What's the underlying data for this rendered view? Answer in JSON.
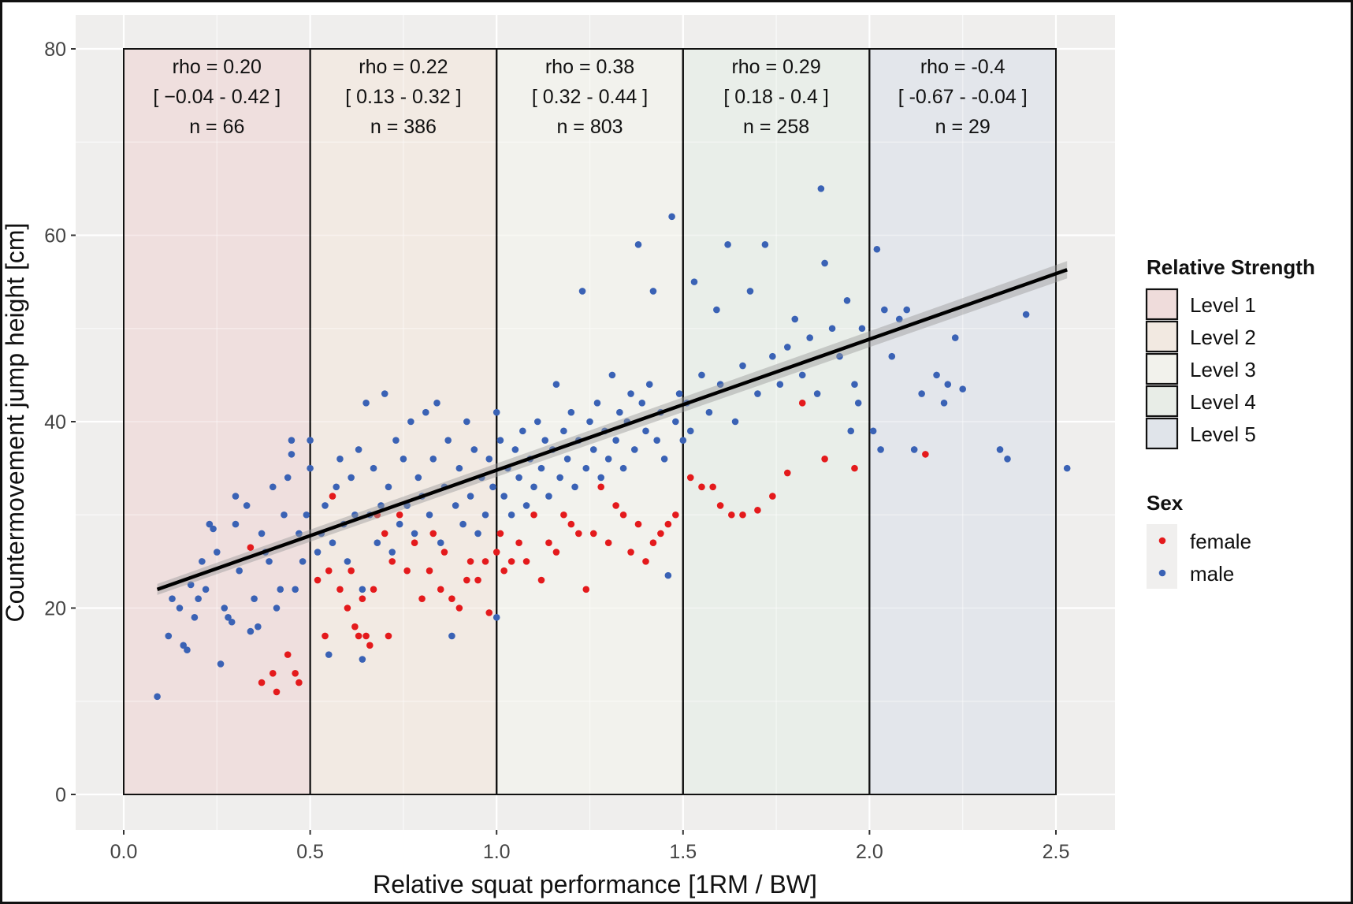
{
  "chart_data": {
    "type": "scatter",
    "title": "",
    "xlabel": "Relative squat performance [1RM / BW]",
    "ylabel": "Countermovement jump height [cm]",
    "xlim": [
      -0.12,
      2.65
    ],
    "ylim": [
      -7.5,
      84.5
    ],
    "x_ticks": [
      0.0,
      0.5,
      1.0,
      1.5,
      2.0,
      2.5
    ],
    "x_tick_labels": [
      "0.0",
      "0.5",
      "1.0",
      "1.5",
      "2.0",
      "2.5"
    ],
    "y_ticks": [
      0,
      20,
      40,
      60,
      80
    ],
    "y_tick_labels": [
      "0",
      "20",
      "40",
      "60",
      "80"
    ],
    "grid": true,
    "regression_line": {
      "x": [
        0.09,
        2.53
      ],
      "y": [
        22.0,
        56.3
      ],
      "color": "#000000",
      "ci_band": true
    },
    "levels": [
      {
        "name": "Level 1",
        "x_range": [
          0.0,
          0.5
        ],
        "color": "#efdcdb",
        "rho": "rho =  0.20",
        "ci": "[ −0.04 - 0.42 ]",
        "n": "n =  66"
      },
      {
        "name": "Level 2",
        "x_range": [
          0.5,
          1.0
        ],
        "color": "#f2e9e1",
        "rho": "rho =  0.22",
        "ci": "[ 0.13 - 0.32 ]",
        "n": "n =  386"
      },
      {
        "name": "Level 3",
        "x_range": [
          1.0,
          1.5
        ],
        "color": "#f2f2ec",
        "rho": "rho =  0.38",
        "ci": "[ 0.32 - 0.44 ]",
        "n": "n =  803"
      },
      {
        "name": "Level 4",
        "x_range": [
          1.5,
          2.0
        ],
        "color": "#e8ede7",
        "rho": "rho =  0.29",
        "ci": "[ 0.18 - 0.4 ]",
        "n": "n =  258"
      },
      {
        "name": "Level 5",
        "x_range": [
          2.0,
          2.5
        ],
        "color": "#e0e4ea",
        "rho": "rho =  -0.4",
        "ci": "[ -0.67 - -0.04 ]",
        "n": "n =  29"
      }
    ],
    "series": [
      {
        "name": "female",
        "color": "#e41a1c",
        "points": [
          [
            0.34,
            26.5
          ],
          [
            0.37,
            12
          ],
          [
            0.4,
            13
          ],
          [
            0.41,
            11
          ],
          [
            0.44,
            15
          ],
          [
            0.46,
            13
          ],
          [
            0.47,
            12
          ],
          [
            0.52,
            23
          ],
          [
            0.54,
            17
          ],
          [
            0.55,
            24
          ],
          [
            0.56,
            32
          ],
          [
            0.58,
            22
          ],
          [
            0.6,
            20
          ],
          [
            0.61,
            24
          ],
          [
            0.62,
            18
          ],
          [
            0.63,
            17
          ],
          [
            0.64,
            21
          ],
          [
            0.65,
            17
          ],
          [
            0.66,
            16
          ],
          [
            0.67,
            22
          ],
          [
            0.68,
            30
          ],
          [
            0.7,
            28
          ],
          [
            0.71,
            17
          ],
          [
            0.72,
            25
          ],
          [
            0.74,
            30
          ],
          [
            0.76,
            24
          ],
          [
            0.78,
            27
          ],
          [
            0.8,
            21
          ],
          [
            0.82,
            24
          ],
          [
            0.83,
            28
          ],
          [
            0.85,
            22
          ],
          [
            0.86,
            26
          ],
          [
            0.88,
            21
          ],
          [
            0.9,
            20
          ],
          [
            0.92,
            23
          ],
          [
            0.93,
            25
          ],
          [
            0.95,
            23
          ],
          [
            0.97,
            25
          ],
          [
            0.98,
            19.5
          ],
          [
            1.0,
            26
          ],
          [
            1.01,
            28
          ],
          [
            1.02,
            24
          ],
          [
            1.04,
            25
          ],
          [
            1.06,
            27
          ],
          [
            1.08,
            25
          ],
          [
            1.1,
            30
          ],
          [
            1.12,
            23
          ],
          [
            1.14,
            27
          ],
          [
            1.16,
            26
          ],
          [
            1.18,
            30
          ],
          [
            1.2,
            29
          ],
          [
            1.22,
            28
          ],
          [
            1.24,
            22
          ],
          [
            1.26,
            28
          ],
          [
            1.28,
            33
          ],
          [
            1.3,
            27
          ],
          [
            1.32,
            31
          ],
          [
            1.34,
            30
          ],
          [
            1.36,
            26
          ],
          [
            1.38,
            29
          ],
          [
            1.4,
            25
          ],
          [
            1.42,
            27
          ],
          [
            1.44,
            28
          ],
          [
            1.46,
            29
          ],
          [
            1.48,
            30
          ],
          [
            1.52,
            34
          ],
          [
            1.55,
            33
          ],
          [
            1.58,
            33
          ],
          [
            1.6,
            31
          ],
          [
            1.63,
            30
          ],
          [
            1.66,
            30
          ],
          [
            1.7,
            30.5
          ],
          [
            1.74,
            32
          ],
          [
            1.78,
            34.5
          ],
          [
            1.82,
            42
          ],
          [
            1.88,
            36
          ],
          [
            1.96,
            35
          ],
          [
            2.15,
            36.5
          ]
        ]
      },
      {
        "name": "male",
        "color": "#3a62b5",
        "points": [
          [
            0.09,
            10.5
          ],
          [
            0.12,
            17
          ],
          [
            0.13,
            21
          ],
          [
            0.15,
            20
          ],
          [
            0.16,
            16
          ],
          [
            0.17,
            15.5
          ],
          [
            0.18,
            22.5
          ],
          [
            0.19,
            19
          ],
          [
            0.2,
            21
          ],
          [
            0.21,
            25
          ],
          [
            0.22,
            22
          ],
          [
            0.23,
            29
          ],
          [
            0.24,
            28.5
          ],
          [
            0.25,
            26
          ],
          [
            0.26,
            14
          ],
          [
            0.27,
            20
          ],
          [
            0.28,
            19
          ],
          [
            0.29,
            18.5
          ],
          [
            0.3,
            29
          ],
          [
            0.3,
            32
          ],
          [
            0.31,
            24
          ],
          [
            0.33,
            31
          ],
          [
            0.34,
            17.5
          ],
          [
            0.35,
            21
          ],
          [
            0.36,
            18
          ],
          [
            0.37,
            28
          ],
          [
            0.38,
            26
          ],
          [
            0.39,
            25
          ],
          [
            0.4,
            33
          ],
          [
            0.41,
            20
          ],
          [
            0.42,
            22
          ],
          [
            0.43,
            30
          ],
          [
            0.44,
            34
          ],
          [
            0.45,
            38
          ],
          [
            0.45,
            36.5
          ],
          [
            0.46,
            22
          ],
          [
            0.47,
            28
          ],
          [
            0.48,
            25
          ],
          [
            0.49,
            30
          ],
          [
            0.5,
            35
          ],
          [
            0.5,
            38
          ],
          [
            0.52,
            26
          ],
          [
            0.53,
            28
          ],
          [
            0.54,
            31
          ],
          [
            0.55,
            15
          ],
          [
            0.56,
            27
          ],
          [
            0.57,
            33
          ],
          [
            0.58,
            36
          ],
          [
            0.59,
            29
          ],
          [
            0.6,
            25
          ],
          [
            0.61,
            34
          ],
          [
            0.62,
            30
          ],
          [
            0.63,
            37
          ],
          [
            0.64,
            22
          ],
          [
            0.64,
            14.5
          ],
          [
            0.65,
            42
          ],
          [
            0.66,
            30
          ],
          [
            0.67,
            35
          ],
          [
            0.68,
            27
          ],
          [
            0.69,
            31
          ],
          [
            0.7,
            43
          ],
          [
            0.71,
            33
          ],
          [
            0.72,
            26
          ],
          [
            0.73,
            38
          ],
          [
            0.74,
            29
          ],
          [
            0.75,
            36
          ],
          [
            0.76,
            31
          ],
          [
            0.77,
            40
          ],
          [
            0.78,
            28
          ],
          [
            0.79,
            34
          ],
          [
            0.8,
            32
          ],
          [
            0.81,
            41
          ],
          [
            0.82,
            30
          ],
          [
            0.83,
            36
          ],
          [
            0.84,
            42
          ],
          [
            0.85,
            27
          ],
          [
            0.86,
            33
          ],
          [
            0.87,
            38
          ],
          [
            0.88,
            17
          ],
          [
            0.89,
            31
          ],
          [
            0.9,
            35
          ],
          [
            0.91,
            29
          ],
          [
            0.92,
            40
          ],
          [
            0.93,
            32
          ],
          [
            0.94,
            37
          ],
          [
            0.95,
            28
          ],
          [
            0.96,
            34
          ],
          [
            0.97,
            30
          ],
          [
            0.98,
            36
          ],
          [
            0.99,
            33
          ],
          [
            1.0,
            19
          ],
          [
            1.0,
            41
          ],
          [
            1.01,
            38
          ],
          [
            1.02,
            32
          ],
          [
            1.03,
            35
          ],
          [
            1.04,
            30
          ],
          [
            1.05,
            37
          ],
          [
            1.06,
            34
          ],
          [
            1.07,
            39
          ],
          [
            1.08,
            31
          ],
          [
            1.09,
            36
          ],
          [
            1.1,
            33
          ],
          [
            1.11,
            40
          ],
          [
            1.12,
            35
          ],
          [
            1.13,
            38
          ],
          [
            1.14,
            32
          ],
          [
            1.15,
            37
          ],
          [
            1.16,
            44
          ],
          [
            1.17,
            34
          ],
          [
            1.18,
            39
          ],
          [
            1.19,
            36
          ],
          [
            1.2,
            41
          ],
          [
            1.21,
            33
          ],
          [
            1.22,
            38
          ],
          [
            1.23,
            54
          ],
          [
            1.24,
            35
          ],
          [
            1.25,
            40
          ],
          [
            1.26,
            37
          ],
          [
            1.27,
            42
          ],
          [
            1.28,
            34
          ],
          [
            1.29,
            39
          ],
          [
            1.3,
            36
          ],
          [
            1.31,
            45
          ],
          [
            1.32,
            38
          ],
          [
            1.33,
            41
          ],
          [
            1.34,
            35
          ],
          [
            1.35,
            40
          ],
          [
            1.36,
            43
          ],
          [
            1.37,
            37
          ],
          [
            1.38,
            59
          ],
          [
            1.39,
            42
          ],
          [
            1.4,
            39
          ],
          [
            1.41,
            44
          ],
          [
            1.42,
            54
          ],
          [
            1.43,
            38
          ],
          [
            1.44,
            41
          ],
          [
            1.45,
            36
          ],
          [
            1.46,
            23.5
          ],
          [
            1.47,
            62
          ],
          [
            1.48,
            40
          ],
          [
            1.49,
            43
          ],
          [
            1.5,
            38
          ],
          [
            1.51,
            42
          ],
          [
            1.52,
            39
          ],
          [
            1.53,
            55
          ],
          [
            1.55,
            45
          ],
          [
            1.57,
            41
          ],
          [
            1.59,
            52
          ],
          [
            1.6,
            44
          ],
          [
            1.62,
            59
          ],
          [
            1.64,
            40
          ],
          [
            1.66,
            46
          ],
          [
            1.68,
            54
          ],
          [
            1.7,
            43
          ],
          [
            1.72,
            59
          ],
          [
            1.74,
            47
          ],
          [
            1.76,
            44
          ],
          [
            1.78,
            48
          ],
          [
            1.8,
            51
          ],
          [
            1.82,
            45
          ],
          [
            1.84,
            49
          ],
          [
            1.86,
            43
          ],
          [
            1.87,
            65
          ],
          [
            1.88,
            57
          ],
          [
            1.9,
            50
          ],
          [
            1.92,
            47
          ],
          [
            1.94,
            53
          ],
          [
            1.95,
            39
          ],
          [
            1.96,
            44
          ],
          [
            1.97,
            42
          ],
          [
            1.98,
            50
          ],
          [
            2.01,
            39
          ],
          [
            2.02,
            58.5
          ],
          [
            2.03,
            37
          ],
          [
            2.04,
            52
          ],
          [
            2.06,
            47
          ],
          [
            2.08,
            51
          ],
          [
            2.1,
            52
          ],
          [
            2.12,
            37
          ],
          [
            2.14,
            43
          ],
          [
            2.18,
            45
          ],
          [
            2.2,
            42
          ],
          [
            2.21,
            44
          ],
          [
            2.23,
            49
          ],
          [
            2.25,
            43.5
          ],
          [
            2.35,
            37
          ],
          [
            2.37,
            36
          ],
          [
            2.42,
            51.5
          ],
          [
            2.53,
            35
          ]
        ]
      }
    ],
    "legend": {
      "placement": "right",
      "fill_title": "Relative Strength",
      "fill_items": [
        "Level 1",
        "Level 2",
        "Level 3",
        "Level 4",
        "Level 5"
      ],
      "color_title": "Sex",
      "color_items": [
        "female",
        "male"
      ]
    }
  }
}
